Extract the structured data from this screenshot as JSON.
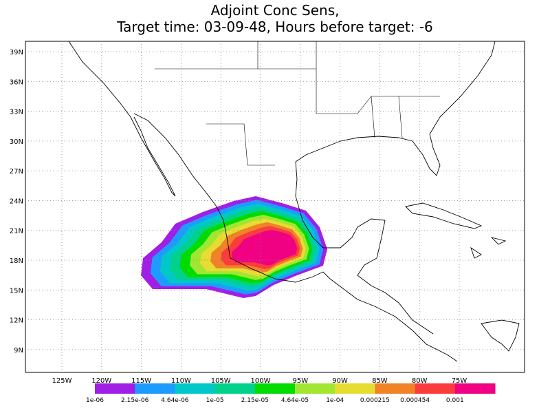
{
  "title": {
    "line1": "Adjoint Conc Sens,",
    "line2": "Target time: 03-09-48, Hours before target: -6"
  },
  "map": {
    "lat_ticks": [
      {
        "value": 39,
        "label": "39N"
      },
      {
        "value": 36,
        "label": "36N"
      },
      {
        "value": 33,
        "label": "33N"
      },
      {
        "value": 30,
        "label": "30N"
      },
      {
        "value": 27,
        "label": "27N"
      },
      {
        "value": 24,
        "label": "24N"
      },
      {
        "value": 21,
        "label": "21N"
      },
      {
        "value": 18,
        "label": "18N"
      },
      {
        "value": 15,
        "label": "15N"
      },
      {
        "value": 12,
        "label": "12N"
      },
      {
        "value": 9,
        "label": "9N"
      }
    ],
    "lon_ticks": [
      {
        "value": -125,
        "label": "125W"
      },
      {
        "value": -120,
        "label": "120W"
      },
      {
        "value": -115,
        "label": "115W"
      },
      {
        "value": -110,
        "label": "110W"
      },
      {
        "value": -105,
        "label": "105W"
      },
      {
        "value": -100,
        "label": "100W"
      },
      {
        "value": -95,
        "label": "95W"
      },
      {
        "value": -90,
        "label": "90W"
      },
      {
        "value": -85,
        "label": "85W"
      },
      {
        "value": -80,
        "label": "80W"
      },
      {
        "value": -75,
        "label": "75W"
      }
    ]
  },
  "colorbar": {
    "colors": [
      "#a01ee6",
      "#1e9bff",
      "#00c8c8",
      "#00d28c",
      "#00dc00",
      "#a0e632",
      "#e6dc32",
      "#f08228",
      "#fa3c3c",
      "#f00082"
    ],
    "labels": [
      "1e-06",
      "2.15e-06",
      "4.64e-06",
      "1e-05",
      "2.15e-05",
      "4.64e-05",
      "1e-04",
      "0.000215",
      "0.000454",
      "0.001"
    ]
  }
}
